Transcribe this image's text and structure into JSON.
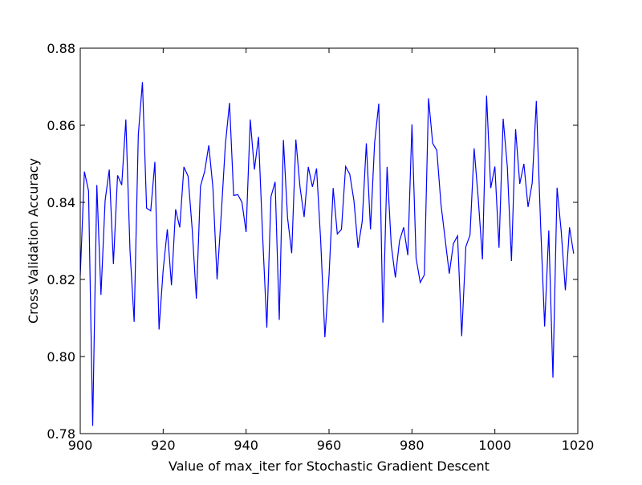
{
  "chart_data": {
    "type": "line",
    "title": "",
    "xlabel": "Value of max_iter for Stochastic Gradient Descent",
    "ylabel": "Cross Validation Accuracy",
    "xlim": [
      900,
      1020
    ],
    "ylim": [
      0.78,
      0.88
    ],
    "xticks": [
      900,
      920,
      940,
      960,
      980,
      1000,
      1020
    ],
    "yticks": [
      0.78,
      0.8,
      0.82,
      0.84,
      0.86,
      0.88
    ],
    "xtick_labels": [
      "900",
      "920",
      "940",
      "960",
      "980",
      "1000",
      "1020"
    ],
    "ytick_labels": [
      "0.78",
      "0.80",
      "0.82",
      "0.84",
      "0.86",
      "0.88"
    ],
    "grid": false,
    "legend": "none",
    "series_color": "#0000ff",
    "x": [
      900,
      901,
      902,
      903,
      904,
      905,
      906,
      907,
      908,
      909,
      910,
      911,
      912,
      913,
      914,
      915,
      916,
      917,
      918,
      919,
      920,
      921,
      922,
      923,
      924,
      925,
      926,
      927,
      928,
      929,
      930,
      931,
      932,
      933,
      934,
      935,
      936,
      937,
      938,
      939,
      940,
      941,
      942,
      943,
      944,
      945,
      946,
      947,
      948,
      949,
      950,
      951,
      952,
      953,
      954,
      955,
      956,
      957,
      958,
      959,
      960,
      961,
      962,
      963,
      964,
      965,
      966,
      967,
      968,
      969,
      970,
      971,
      972,
      973,
      974,
      975,
      976,
      977,
      978,
      979,
      980,
      981,
      982,
      983,
      984,
      985,
      986,
      987,
      988,
      989,
      990,
      991,
      992,
      993,
      994,
      995,
      996,
      997,
      998,
      999,
      1000,
      1001,
      1002,
      1003,
      1004,
      1005,
      1006,
      1007,
      1008,
      1009,
      1010,
      1011,
      1012,
      1013,
      1014,
      1015,
      1016,
      1017,
      1018,
      1019
    ],
    "y": [
      0.821,
      0.848,
      0.843,
      0.782,
      0.8445,
      0.816,
      0.8405,
      0.8485,
      0.824,
      0.847,
      0.8445,
      0.8615,
      0.8275,
      0.809,
      0.8575,
      0.8712,
      0.8385,
      0.8378,
      0.8505,
      0.807,
      0.8225,
      0.833,
      0.8185,
      0.8382,
      0.8335,
      0.8492,
      0.8468,
      0.833,
      0.815,
      0.8442,
      0.848,
      0.8548,
      0.8438,
      0.82,
      0.8368,
      0.855,
      0.8658,
      0.8418,
      0.842,
      0.84,
      0.8323,
      0.8615,
      0.8485,
      0.857,
      0.831,
      0.8075,
      0.8415,
      0.8453,
      0.8095,
      0.8562,
      0.836,
      0.8268,
      0.8563,
      0.844,
      0.8362,
      0.8492,
      0.844,
      0.8488,
      0.8298,
      0.805,
      0.821,
      0.8437,
      0.8318,
      0.833,
      0.8493,
      0.8473,
      0.8405,
      0.8282,
      0.835,
      0.8553,
      0.833,
      0.8555,
      0.8656,
      0.8088,
      0.8492,
      0.829,
      0.8205,
      0.83,
      0.8335,
      0.8263,
      0.8602,
      0.8255,
      0.8192,
      0.8212,
      0.867,
      0.8553,
      0.8535,
      0.8395,
      0.8305,
      0.8215,
      0.8293,
      0.8313,
      0.8053,
      0.8285,
      0.8315,
      0.854,
      0.8408,
      0.8252,
      0.8677,
      0.8437,
      0.8493,
      0.8282,
      0.8617,
      0.8493,
      0.8248,
      0.859,
      0.8448,
      0.85,
      0.8388,
      0.845,
      0.8663,
      0.835,
      0.8078,
      0.8327,
      0.7945,
      0.8438,
      0.8325,
      0.8172,
      0.8335,
      0.8267
    ]
  }
}
